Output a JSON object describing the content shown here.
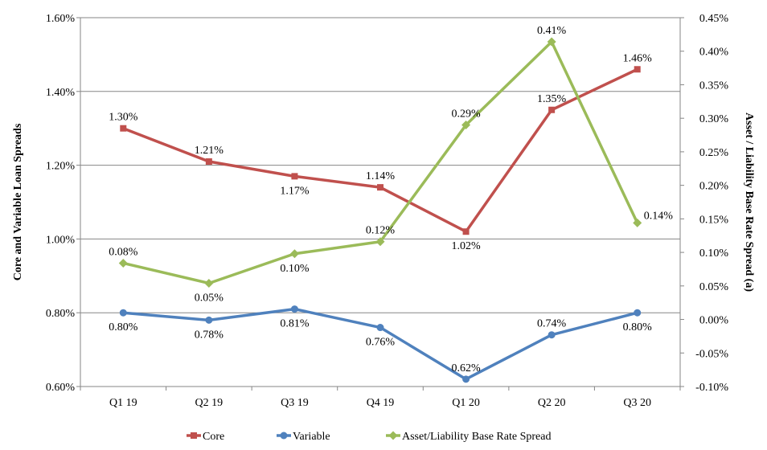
{
  "chart_data": {
    "type": "line",
    "title": "",
    "categories": [
      "Q1 19",
      "Q2 19",
      "Q3 19",
      "Q4 19",
      "Q1 20",
      "Q2 20",
      "Q3 20"
    ],
    "left_axis": {
      "label": "Core and Variable Loan Spreads",
      "range": [
        0.6,
        1.6
      ],
      "ticks": [
        0.6,
        0.8,
        1.0,
        1.2,
        1.4,
        1.6
      ],
      "tick_labels": [
        "0.60%",
        "0.80%",
        "1.00%",
        "1.20%",
        "1.40%",
        "1.60%"
      ]
    },
    "right_axis": {
      "label": "Asset / Liability Base Rate Spread (a)",
      "range": [
        -0.1,
        0.45
      ],
      "ticks": [
        -0.1,
        -0.05,
        0.0,
        0.05,
        0.1,
        0.15,
        0.2,
        0.25,
        0.3,
        0.35,
        0.4,
        0.45
      ],
      "tick_labels": [
        "-0.10%",
        "-0.05%",
        "0.00%",
        "0.05%",
        "0.10%",
        "0.15%",
        "0.20%",
        "0.25%",
        "0.30%",
        "0.35%",
        "0.40%",
        "0.45%"
      ]
    },
    "series": [
      {
        "name": "Core",
        "axis": "left",
        "marker": "square",
        "color": "#C0504D",
        "values": [
          1.3,
          1.21,
          1.17,
          1.14,
          1.02,
          1.35,
          1.46
        ],
        "labels": [
          "1.30%",
          "1.21%",
          "1.17%",
          "1.14%",
          "1.02%",
          "1.35%",
          "1.46%"
        ],
        "label_pos": [
          "above",
          "above",
          "below",
          "above",
          "below",
          "above",
          "above"
        ]
      },
      {
        "name": "Variable",
        "axis": "left",
        "marker": "circle",
        "color": "#4F81BD",
        "values": [
          0.8,
          0.78,
          0.81,
          0.76,
          0.62,
          0.74,
          0.8
        ],
        "labels": [
          "0.80%",
          "0.78%",
          "0.81%",
          "0.76%",
          "0.62%",
          "0.74%",
          "0.80%"
        ],
        "label_pos": [
          "below",
          "below",
          "below",
          "below",
          "above",
          "above",
          "below"
        ]
      },
      {
        "name": "Asset/Liability Base Rate Spread",
        "axis": "right",
        "marker": "diamond",
        "color": "#9BBB59",
        "values": [
          0.084,
          0.054,
          0.098,
          0.116,
          0.29,
          0.414,
          0.144
        ],
        "labels": [
          "0.08%",
          "0.05%",
          "0.10%",
          "0.12%",
          "0.29%",
          "0.41%",
          "0.14%"
        ],
        "label_pos": [
          "above",
          "below",
          "below",
          "above",
          "above",
          "above",
          "right"
        ]
      }
    ],
    "legend": {
      "placement": "bottom"
    },
    "grid": true
  }
}
